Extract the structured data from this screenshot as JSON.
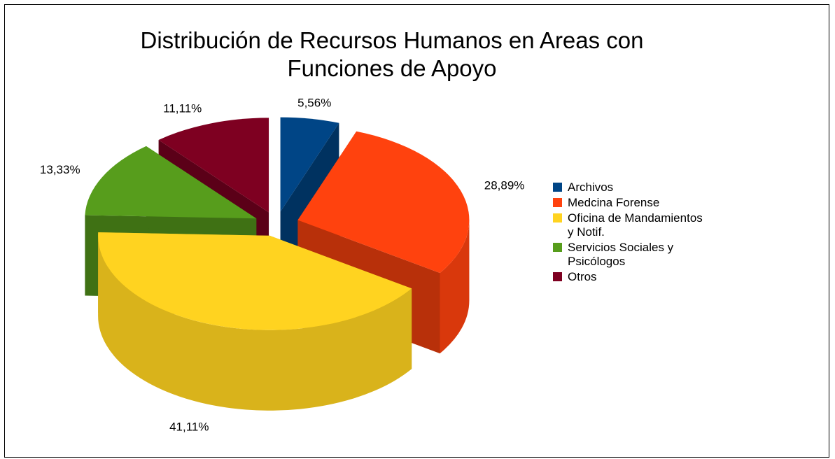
{
  "chart_data": {
    "type": "pie3d",
    "title": "Distribución de Recursos Humanos en Areas con Funciones de Apoyo",
    "categories": [
      "Archivos",
      "Medcina Forense",
      "Oficina de Mandamientos y Notif.",
      "Servicios Sociales y Psicólogos",
      "Otros"
    ],
    "values": [
      5.56,
      28.89,
      41.11,
      13.33,
      11.11
    ],
    "value_labels": [
      "5,56%",
      "28,89%",
      "41,11%",
      "13,33%",
      "11,11%"
    ],
    "colors": [
      "#004586",
      "#ff420e",
      "#ffd320",
      "#579d1c",
      "#7e0021"
    ],
    "legend": "right"
  }
}
